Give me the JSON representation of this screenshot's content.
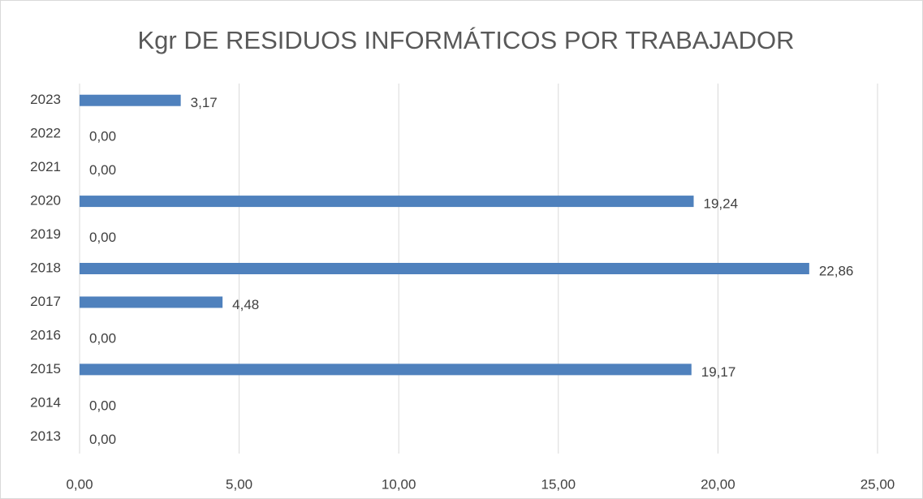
{
  "chart_data": {
    "type": "barh",
    "title": "Kgr DE RESIDUOS INFORMÁTICOS POR TRABAJADOR",
    "categories": [
      "2013",
      "2014",
      "2015",
      "2016",
      "2017",
      "2018",
      "2019",
      "2020",
      "2021",
      "2022",
      "2023"
    ],
    "values": [
      0,
      0,
      19.17,
      0,
      4.48,
      22.86,
      0,
      19.24,
      0,
      0,
      3.17
    ],
    "value_labels": [
      "0,00",
      "0,00",
      "19,17",
      "0,00",
      "4,48",
      "22,86",
      "0,00",
      "19,24",
      "0,00",
      "0,00",
      "3,17"
    ],
    "color": "#4f81bd",
    "xlim": [
      0,
      25
    ],
    "xticks": [
      {
        "value": 0,
        "label": "0,00"
      },
      {
        "value": 5,
        "label": "5,00"
      },
      {
        "value": 10,
        "label": "10,00"
      },
      {
        "value": 15,
        "label": "15,00"
      },
      {
        "value": 20,
        "label": "20,00"
      },
      {
        "value": 25,
        "label": "25,00"
      }
    ],
    "grid": true
  }
}
